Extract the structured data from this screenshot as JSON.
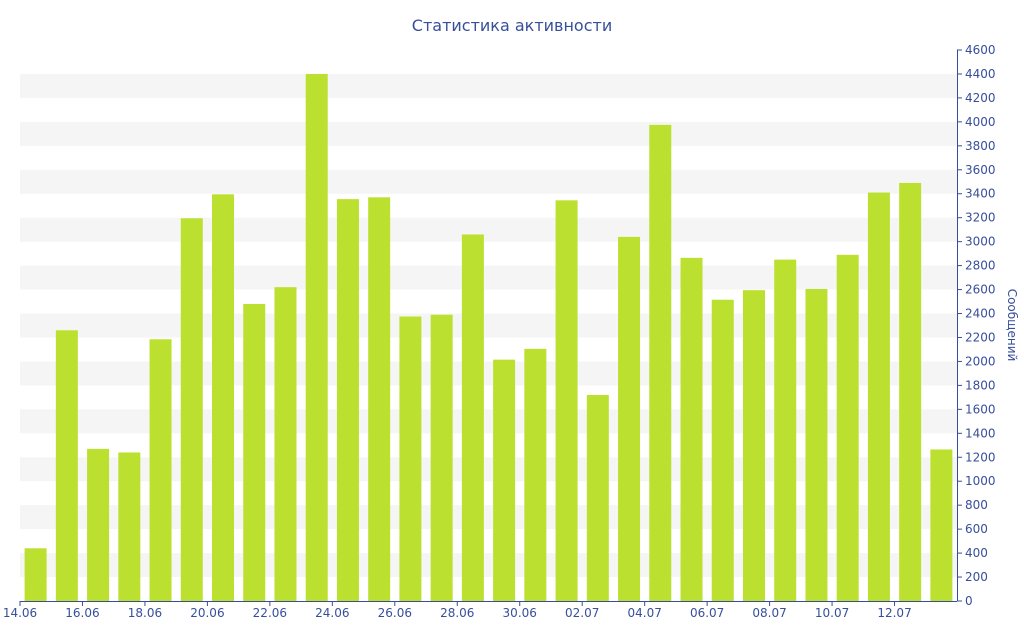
{
  "chart_data": {
    "type": "bar",
    "title": "Статистика активности",
    "xlabel": "",
    "ylabel": "Сообщений",
    "ylim": [
      0,
      4600
    ],
    "y_ticks": [
      0,
      200,
      400,
      600,
      800,
      1000,
      1200,
      1400,
      1600,
      1800,
      2000,
      2200,
      2400,
      2600,
      2800,
      3000,
      3200,
      3400,
      3600,
      3800,
      4000,
      4200,
      4400,
      4600
    ],
    "categories": [
      "14.06",
      "15.06",
      "16.06",
      "17.06",
      "18.06",
      "19.06",
      "20.06",
      "21.06",
      "22.06",
      "23.06",
      "24.06",
      "25.06",
      "26.06",
      "27.06",
      "28.06",
      "29.06",
      "30.06",
      "01.07",
      "02.07",
      "03.07",
      "04.07",
      "05.07",
      "06.07",
      "07.07",
      "08.07",
      "09.07",
      "10.07",
      "11.07",
      "12.07",
      "13.07"
    ],
    "x_tick_labels": [
      "14.06",
      "",
      "16.06",
      "",
      "18.06",
      "",
      "20.06",
      "",
      "22.06",
      "",
      "24.06",
      "",
      "26.06",
      "",
      "28.06",
      "",
      "30.06",
      "",
      "02.07",
      "",
      "04.07",
      "",
      "06.07",
      "",
      "08.07",
      "",
      "10.07",
      "",
      "12.07",
      ""
    ],
    "values": [
      440,
      2260,
      1270,
      1240,
      2185,
      3195,
      3395,
      2480,
      2620,
      4400,
      3355,
      3370,
      2375,
      2390,
      3060,
      2015,
      2105,
      3345,
      1720,
      3040,
      3975,
      2865,
      2515,
      2595,
      2850,
      2605,
      2890,
      3410,
      3490,
      1265
    ],
    "grid": true,
    "y_axis_position": "right",
    "colors": {
      "bar": "#bbe02f",
      "axis": "#374f9a",
      "band": "#f5f5f5",
      "text": "#374f9a"
    }
  }
}
